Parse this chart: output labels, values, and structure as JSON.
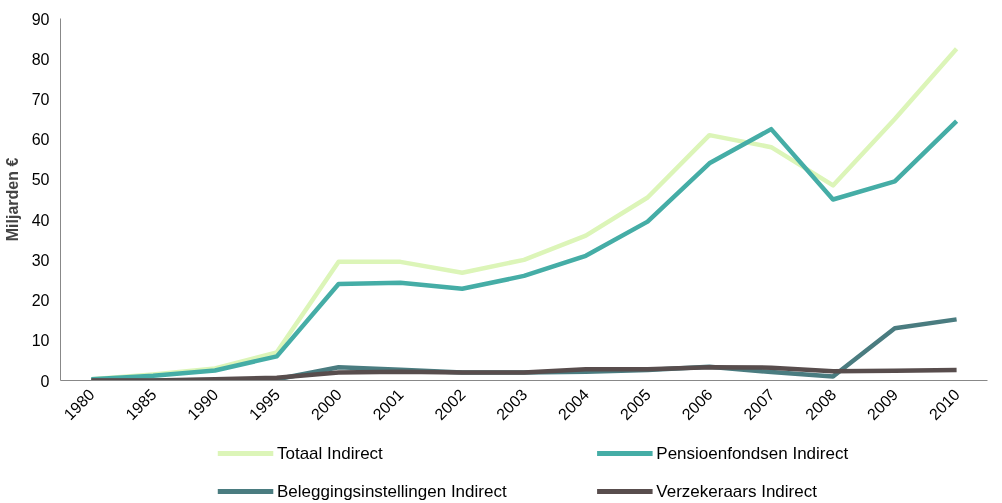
{
  "chart_data": {
    "type": "line",
    "ylabel": "Miljarden €",
    "categories": [
      "1980",
      "1985",
      "1990",
      "1995",
      "2000",
      "2001",
      "2002",
      "2003",
      "2004",
      "2005",
      "2006",
      "2007",
      "2008",
      "2009",
      "2010"
    ],
    "ylim": [
      0,
      90
    ],
    "yticks": [
      0,
      10,
      20,
      30,
      40,
      50,
      60,
      70,
      80,
      90
    ],
    "grid": false,
    "legend": "bottom",
    "marker": "none",
    "line_style": "solid",
    "series": [
      {
        "name": "Totaal Indirect",
        "color": "#dcf5b8",
        "values": [
          0.3,
          1.5,
          3,
          7,
          29.5,
          29.5,
          26.8,
          30,
          36,
          45.5,
          61,
          58,
          48.5,
          65,
          82.5
        ]
      },
      {
        "name": "Pensioenfondsen Indirect",
        "color": "#45ada6",
        "values": [
          0.3,
          1.2,
          2.5,
          6,
          24,
          24.3,
          22.8,
          26,
          31,
          39.5,
          54,
          62.5,
          45,
          49.5,
          64.5
        ]
      },
      {
        "name": "Beleggingsinstellingen Indirect",
        "color": "#4a7c80",
        "values": [
          0,
          0,
          0.1,
          0.3,
          3.3,
          2.7,
          2,
          2,
          2.2,
          2.6,
          3.4,
          2.1,
          1,
          13,
          15.2
        ]
      },
      {
        "name": "Verzekeraars Indirect",
        "color": "#584d4d",
        "values": [
          0,
          0,
          0.3,
          0.7,
          2,
          2.2,
          2,
          2,
          2.8,
          2.8,
          3.3,
          3.2,
          2.3,
          2.4,
          2.6
        ]
      }
    ]
  }
}
